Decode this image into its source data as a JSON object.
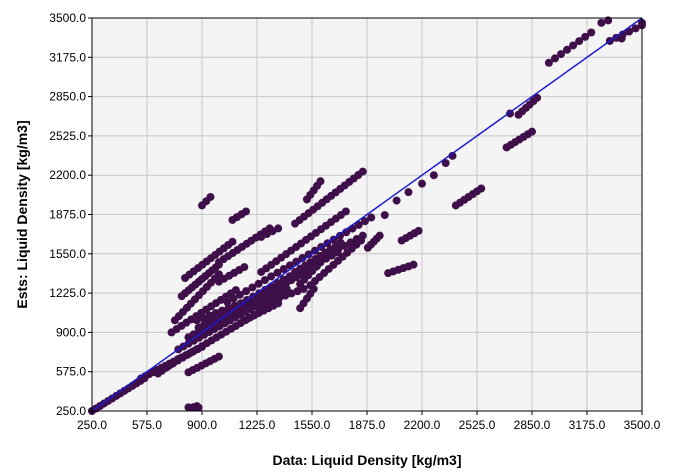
{
  "chart_data": {
    "type": "scatter",
    "xlabel": "Data: Liquid Density [kg/m3]",
    "ylabel": "Ests: Liquid Density [kg/m3]",
    "xlim": [
      250,
      3500
    ],
    "ylim": [
      250,
      3500
    ],
    "x_ticks": [
      "250.0",
      "575.0",
      "900.0",
      "1225.0",
      "1550.0",
      "1875.0",
      "2200.0",
      "2525.0",
      "2850.0",
      "3175.0",
      "3500.0"
    ],
    "y_ticks": [
      "250.0",
      "575.0",
      "900.0",
      "1225.0",
      "1550.0",
      "1875.0",
      "2200.0",
      "2525.0",
      "2850.0",
      "3175.0",
      "3500.0"
    ],
    "grid": true,
    "plot_background": "#f4f4f4",
    "grid_color": "#c8c8c8",
    "marker_color": "#3f0f4a",
    "parity_line_color": "#1a1acc",
    "parity_line": [
      [
        250,
        250
      ],
      [
        3500,
        3500
      ]
    ],
    "segments": [
      {
        "from": [
          250,
          250
        ],
        "to": [
          560,
          520
        ],
        "n": 14
      },
      {
        "from": [
          540,
          520
        ],
        "to": [
          900,
          780
        ],
        "n": 16
      },
      {
        "from": [
          700,
          620
        ],
        "to": [
          1300,
          1120
        ],
        "n": 22
      },
      {
        "from": [
          760,
          760
        ],
        "to": [
          1400,
          1260
        ],
        "n": 22
      },
      {
        "from": [
          820,
          860
        ],
        "to": [
          1580,
          1450
        ],
        "n": 26
      },
      {
        "from": [
          880,
          940
        ],
        "to": [
          1700,
          1560
        ],
        "n": 26
      },
      {
        "from": [
          950,
          1000
        ],
        "to": [
          1850,
          1700
        ],
        "n": 26
      },
      {
        "from": [
          1050,
          1150
        ],
        "to": [
          1900,
          1850
        ],
        "n": 24
      },
      {
        "from": [
          720,
          900
        ],
        "to": [
          1100,
          1250
        ],
        "n": 14
      },
      {
        "from": [
          740,
          1000
        ],
        "to": [
          1000,
          1380
        ],
        "n": 12
      },
      {
        "from": [
          780,
          1200
        ],
        "to": [
          1000,
          1460
        ],
        "n": 12
      },
      {
        "from": [
          800,
          1350
        ],
        "to": [
          1080,
          1650
        ],
        "n": 12
      },
      {
        "from": [
          1000,
          1480
        ],
        "to": [
          1300,
          1760
        ],
        "n": 12
      },
      {
        "from": [
          1250,
          1400
        ],
        "to": [
          1750,
          1900
        ],
        "n": 18
      },
      {
        "from": [
          1450,
          1800
        ],
        "to": [
          1850,
          2230
        ],
        "n": 16
      },
      {
        "from": [
          1450,
          1400
        ],
        "to": [
          1720,
          1640
        ],
        "n": 10
      },
      {
        "from": [
          1480,
          1300
        ],
        "to": [
          1600,
          1480
        ],
        "n": 6
      },
      {
        "from": [
          1480,
          1100
        ],
        "to": [
          1560,
          1260
        ],
        "n": 5
      },
      {
        "from": [
          1540,
          1290
        ],
        "to": [
          1840,
          1660
        ],
        "n": 12
      },
      {
        "from": [
          1520,
          2000
        ],
        "to": [
          1600,
          2150
        ],
        "n": 5
      },
      {
        "from": [
          900,
          1950
        ],
        "to": [
          950,
          2020
        ],
        "n": 3
      },
      {
        "from": [
          1080,
          1830
        ],
        "to": [
          1160,
          1900
        ],
        "n": 4
      },
      {
        "from": [
          1250,
          1690
        ],
        "to": [
          1350,
          1760
        ],
        "n": 4
      },
      {
        "from": [
          1000,
          1320
        ],
        "to": [
          1150,
          1440
        ],
        "n": 6
      },
      {
        "from": [
          870,
          1000
        ],
        "to": [
          1130,
          1140
        ],
        "n": 8
      },
      {
        "from": [
          820,
          570
        ],
        "to": [
          1000,
          700
        ],
        "n": 8
      },
      {
        "from": [
          640,
          560
        ],
        "to": [
          760,
          680
        ],
        "n": 6
      },
      {
        "from": [
          1150,
          1000
        ],
        "to": [
          1350,
          1140
        ],
        "n": 8
      },
      {
        "from": [
          1250,
          1130
        ],
        "to": [
          1500,
          1260
        ],
        "n": 8
      },
      {
        "from": [
          1880,
          1600
        ],
        "to": [
          1950,
          1700
        ],
        "n": 5
      },
      {
        "from": [
          2000,
          1390
        ],
        "to": [
          2150,
          1460
        ],
        "n": 6
      },
      {
        "from": [
          2080,
          1660
        ],
        "to": [
          2180,
          1740
        ],
        "n": 5
      },
      {
        "from": [
          2400,
          1950
        ],
        "to": [
          2550,
          2090
        ],
        "n": 7
      },
      {
        "from": [
          2700,
          2430
        ],
        "to": [
          2850,
          2560
        ],
        "n": 7
      },
      {
        "from": [
          2770,
          2700
        ],
        "to": [
          2880,
          2840
        ],
        "n": 6
      },
      {
        "from": [
          2950,
          3130
        ],
        "to": [
          3200,
          3380
        ],
        "n": 8
      },
      {
        "from": [
          3310,
          3310
        ],
        "to": [
          3500,
          3440
        ],
        "n": 6
      }
    ],
    "points": [
      [
        820,
        280
      ],
      [
        850,
        282
      ],
      [
        870,
        290
      ],
      [
        880,
        278
      ],
      [
        1980,
        1870
      ],
      [
        2050,
        1990
      ],
      [
        2120,
        2060
      ],
      [
        2200,
        2130
      ],
      [
        2270,
        2200
      ],
      [
        2340,
        2300
      ],
      [
        2380,
        2360
      ],
      [
        2720,
        2710
      ],
      [
        3260,
        3460
      ],
      [
        3300,
        3480
      ],
      [
        3500,
        3460
      ],
      [
        3380,
        3330
      ]
    ]
  }
}
